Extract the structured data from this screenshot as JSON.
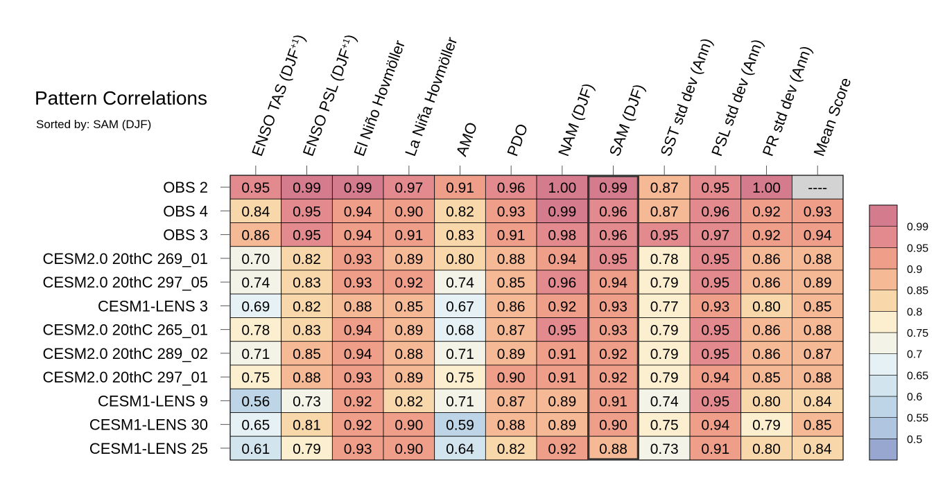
{
  "chart_data": {
    "type": "heatmap",
    "title": "Pattern Correlations",
    "subtitle": "Sorted by: SAM (DJF)",
    "columns": [
      "ENSO TAS (DJF+1)",
      "ENSO PSL (DJF+1)",
      "El Niño Hovmöller",
      "La Niña Hovmöller",
      "AMO",
      "PDO",
      "NAM (DJF)",
      "SAM (DJF)",
      "SST std dev (Ann)",
      "PSL std dev (Ann)",
      "PR std dev (Ann)",
      "Mean Score"
    ],
    "rows": [
      "OBS 2",
      "OBS 4",
      "OBS 3",
      "CESM2.0 20thC 269_01",
      "CESM2.0 20thC 297_05",
      "CESM1-LENS 3",
      "CESM2.0 20thC 265_01",
      "CESM2.0 20thC 289_02",
      "CESM2.0 20thC 297_01",
      "CESM1-LENS 9",
      "CESM1-LENS 30",
      "CESM1-LENS 25"
    ],
    "values": [
      [
        0.95,
        0.99,
        0.99,
        0.97,
        0.91,
        0.96,
        1.0,
        0.99,
        0.87,
        0.95,
        1.0,
        null
      ],
      [
        0.84,
        0.95,
        0.94,
        0.9,
        0.82,
        0.93,
        0.99,
        0.96,
        0.87,
        0.96,
        0.92,
        0.93
      ],
      [
        0.86,
        0.95,
        0.94,
        0.91,
        0.83,
        0.91,
        0.98,
        0.96,
        0.95,
        0.97,
        0.92,
        0.94
      ],
      [
        0.7,
        0.82,
        0.93,
        0.89,
        0.8,
        0.88,
        0.94,
        0.95,
        0.78,
        0.95,
        0.86,
        0.88
      ],
      [
        0.74,
        0.83,
        0.93,
        0.92,
        0.74,
        0.85,
        0.96,
        0.94,
        0.79,
        0.95,
        0.86,
        0.89
      ],
      [
        0.69,
        0.82,
        0.88,
        0.85,
        0.67,
        0.86,
        0.92,
        0.93,
        0.77,
        0.93,
        0.8,
        0.85
      ],
      [
        0.78,
        0.83,
        0.94,
        0.89,
        0.68,
        0.87,
        0.95,
        0.93,
        0.79,
        0.95,
        0.86,
        0.88
      ],
      [
        0.71,
        0.85,
        0.94,
        0.88,
        0.71,
        0.89,
        0.91,
        0.92,
        0.79,
        0.95,
        0.86,
        0.87
      ],
      [
        0.75,
        0.88,
        0.93,
        0.89,
        0.75,
        0.9,
        0.91,
        0.92,
        0.79,
        0.94,
        0.85,
        0.88
      ],
      [
        0.56,
        0.73,
        0.92,
        0.82,
        0.71,
        0.87,
        0.89,
        0.91,
        0.74,
        0.95,
        0.8,
        0.84
      ],
      [
        0.65,
        0.81,
        0.92,
        0.9,
        0.59,
        0.88,
        0.89,
        0.9,
        0.75,
        0.94,
        0.79,
        0.85
      ],
      [
        0.61,
        0.79,
        0.93,
        0.9,
        0.64,
        0.82,
        0.92,
        0.88,
        0.73,
        0.91,
        0.8,
        0.84
      ]
    ],
    "missing_label": "----",
    "highlighted_column": "SAM (DJF)",
    "colorbar": {
      "levels": [
        "0.5",
        "0.55",
        "0.6",
        "0.65",
        "0.7",
        "0.75",
        "0.8",
        "0.85",
        "0.9",
        "0.95",
        "0.99"
      ],
      "colors": [
        "#97a7cf",
        "#b0c6e0",
        "#bdd5e6",
        "#d2e4ee",
        "#e6f1f5",
        "#f3f3e8",
        "#fcefd0",
        "#f8d7aa",
        "#f5b996",
        "#ef9e8a",
        "#e28a8e",
        "#d47b8d"
      ]
    },
    "missing_color": "#d3d3d3"
  }
}
